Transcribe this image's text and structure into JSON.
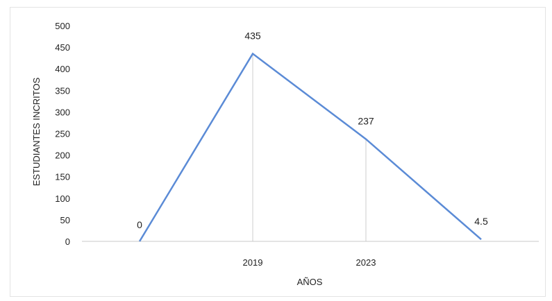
{
  "chart_data": {
    "type": "line",
    "title": "",
    "xlabel": "AÑOS",
    "ylabel": "ESTUDIANTES INCRITOS",
    "ylim": [
      0,
      500
    ],
    "yticks": [
      "0",
      "50",
      "100",
      "150",
      "200",
      "250",
      "300",
      "350",
      "400",
      "450",
      "500"
    ],
    "categories": [
      "",
      "2019",
      "2023",
      ""
    ],
    "values": [
      0,
      435,
      237,
      4.5
    ],
    "data_labels": [
      "0",
      "435",
      "237",
      "4.5"
    ],
    "grid": "vertical lines at labeled x categories",
    "legend": "none",
    "colors": {
      "line": "#5b8bd6",
      "grid": "#dddddd",
      "axis": "#c8c8c8"
    }
  }
}
